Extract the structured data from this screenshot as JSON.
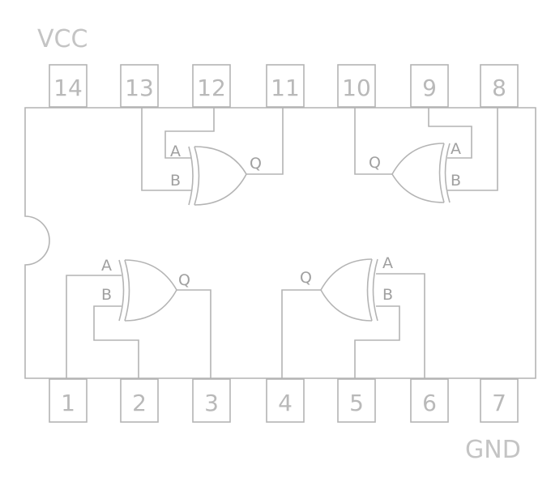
{
  "supply": {
    "vcc": "VCC",
    "gnd": "GND"
  },
  "pins": {
    "top": [
      "14",
      "13",
      "12",
      "11",
      "10",
      "9",
      "8"
    ],
    "bottom": [
      "1",
      "2",
      "3",
      "4",
      "5",
      "6",
      "7"
    ]
  },
  "gate_labels": {
    "a": "A",
    "b": "B",
    "q": "Q"
  },
  "colors": {
    "line": "#b4b4b4",
    "text": "#b9b9b9"
  }
}
